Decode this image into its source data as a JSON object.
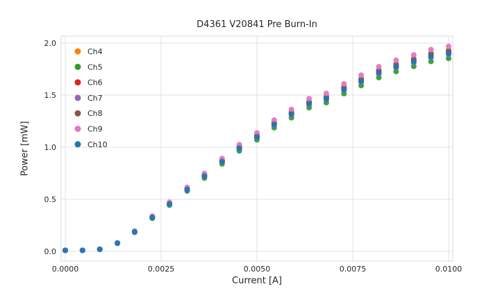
{
  "chart_data": {
    "type": "scatter",
    "title": "D4361 V20841 Pre Burn-In",
    "xlabel": "Current [A]",
    "ylabel": "Power [mW]",
    "xlim": [
      0,
      0.01
    ],
    "ylim": [
      0,
      2.0
    ],
    "xtick_values": [
      0,
      0.0025,
      0.005,
      0.0075,
      0.01
    ],
    "xtick_labels": [
      "0.0000",
      "0.0025",
      "0.0050",
      "0.0075",
      "0.0100"
    ],
    "ytick_values": [
      0,
      0.5,
      1.0,
      1.5,
      2.0
    ],
    "ytick_labels": [
      "0.0",
      "0.5",
      "1.0",
      "1.5",
      "2.0"
    ],
    "grid": true,
    "legend_position": "upper-left",
    "x": [
      0.0,
      0.00045,
      0.0009,
      0.00136,
      0.00181,
      0.00227,
      0.00272,
      0.00318,
      0.00363,
      0.00409,
      0.00454,
      0.005,
      0.00545,
      0.0059,
      0.00636,
      0.00681,
      0.00727,
      0.00772,
      0.00818,
      0.00863,
      0.00909,
      0.00954,
      0.01
    ],
    "series": [
      {
        "name": "Ch4",
        "color": "#ff7f0e",
        "values": [
          0.01,
          0.01,
          0.02,
          0.08,
          0.19,
          0.33,
          0.46,
          0.6,
          0.73,
          0.87,
          1.0,
          1.11,
          1.23,
          1.33,
          1.43,
          1.48,
          1.57,
          1.65,
          1.73,
          1.79,
          1.84,
          1.89,
          1.92
        ]
      },
      {
        "name": "Ch5",
        "color": "#2ca02c",
        "values": [
          0.01,
          0.01,
          0.019,
          0.077,
          0.183,
          0.318,
          0.444,
          0.579,
          0.704,
          0.84,
          0.965,
          1.071,
          1.187,
          1.283,
          1.38,
          1.428,
          1.515,
          1.592,
          1.669,
          1.727,
          1.776,
          1.824,
          1.853
        ]
      },
      {
        "name": "Ch6",
        "color": "#d62728",
        "values": [
          0.01,
          0.01,
          0.02,
          0.08,
          0.189,
          0.328,
          0.458,
          0.597,
          0.726,
          0.866,
          0.995,
          1.104,
          1.224,
          1.323,
          1.423,
          1.473,
          1.562,
          1.642,
          1.721,
          1.781,
          1.831,
          1.881,
          1.91
        ]
      },
      {
        "name": "Ch7",
        "color": "#9467bd",
        "values": [
          0.01,
          0.01,
          0.02,
          0.079,
          0.187,
          0.325,
          0.453,
          0.591,
          0.719,
          0.857,
          0.985,
          1.093,
          1.212,
          1.31,
          1.409,
          1.458,
          1.547,
          1.625,
          1.704,
          1.763,
          1.812,
          1.862,
          1.891
        ]
      },
      {
        "name": "Ch8",
        "color": "#8c564b",
        "values": [
          0.01,
          0.01,
          0.02,
          0.08,
          0.191,
          0.332,
          0.462,
          0.603,
          0.734,
          0.874,
          1.005,
          1.116,
          1.236,
          1.337,
          1.437,
          1.487,
          1.578,
          1.658,
          1.739,
          1.799,
          1.849,
          1.9,
          1.93
        ]
      },
      {
        "name": "Ch9",
        "color": "#e377c2",
        "values": [
          0.01,
          0.01,
          0.021,
          0.082,
          0.195,
          0.338,
          0.472,
          0.615,
          0.748,
          0.892,
          1.025,
          1.138,
          1.261,
          1.363,
          1.466,
          1.517,
          1.609,
          1.691,
          1.773,
          1.835,
          1.886,
          1.937,
          1.968
        ]
      },
      {
        "name": "Ch10",
        "color": "#1f77b4",
        "values": [
          0.01,
          0.01,
          0.02,
          0.079,
          0.188,
          0.327,
          0.455,
          0.594,
          0.723,
          0.861,
          0.99,
          1.099,
          1.218,
          1.317,
          1.416,
          1.465,
          1.554,
          1.634,
          1.713,
          1.772,
          1.822,
          1.871,
          1.901
        ]
      }
    ]
  },
  "styles": {
    "background": "#ffffff",
    "grid_color": "#e2e2e2",
    "border_color": "#d8d8d8",
    "text_color": "#262626",
    "marker_radius": 4
  }
}
